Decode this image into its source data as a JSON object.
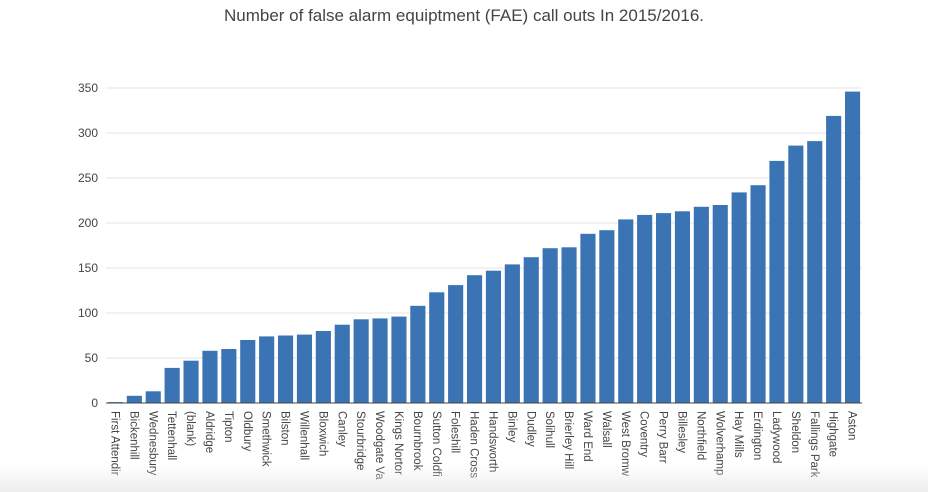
{
  "chart_data": {
    "type": "bar",
    "title": "Number of false alarm equiptment (FAE) call outs In 2015/2016.",
    "xlabel": "",
    "ylabel": "",
    "ylim": [
      0,
      350
    ],
    "yticks": [
      0,
      50,
      100,
      150,
      200,
      250,
      300,
      350
    ],
    "grid": true,
    "bar_color": "#3a74b4",
    "categories": [
      "First Attendir",
      "Bickenhill",
      "Wednesbury",
      "Tettenhall",
      "(blank)",
      "Aldridge",
      "Tipton",
      "Oldbury",
      "Smethwick",
      "Bilston",
      "Willenhall",
      "Bloxwich",
      "Canley",
      "Stourbridge",
      "Woodgate Va",
      "Kings Nortor",
      "Bournbrook",
      "Sutton Coldfi",
      "Foleshill",
      "Haden Cross",
      "Handsworth",
      "Binley",
      "Dudley",
      "Solihull",
      "Brierley Hill",
      "Ward End",
      "Walsall",
      "West Bromw",
      "Coventry",
      "Perry Barr",
      "Billesley",
      "Northfield",
      "Wolverhamp",
      "Hay Mills",
      "Erdington",
      "Ladywood",
      "Sheldon",
      "Fallings Park",
      "Highgate",
      "Aston"
    ],
    "values": [
      1,
      8,
      13,
      39,
      47,
      58,
      60,
      70,
      74,
      75,
      76,
      80,
      87,
      93,
      94,
      96,
      108,
      123,
      131,
      142,
      147,
      154,
      162,
      172,
      173,
      188,
      192,
      204,
      209,
      211,
      213,
      218,
      220,
      234,
      242,
      269,
      286,
      291,
      319,
      346
    ]
  }
}
